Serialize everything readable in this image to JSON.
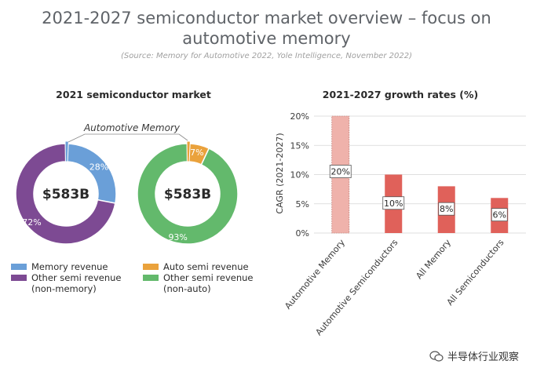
{
  "header": {
    "title_line1": "2021-2027 semiconductor market overview – focus on",
    "title_line2": "automotive memory",
    "source": "(Source: Memory for Automotive 2022, Yole Intelligence, November 2022)"
  },
  "left_panel": {
    "title": "2021 semiconductor market",
    "callout": "Automotive Memory",
    "donut1_center": "$583B",
    "donut2_center": "$583B",
    "legend": [
      {
        "label": "Memory revenue",
        "sub": "",
        "color": "#6a9fd8"
      },
      {
        "label": "Other semi revenue",
        "sub": "(non-memory)",
        "color": "#7d4a93"
      },
      {
        "label": "Auto semi revenue",
        "sub": "",
        "color": "#eaa23c"
      },
      {
        "label": "Other semi revenue",
        "sub": "(non-auto)",
        "color": "#63b96c"
      }
    ]
  },
  "right_panel": {
    "title": "2021-2027 growth rates (%)"
  },
  "chart_data": [
    {
      "type": "pie",
      "subtype": "donut",
      "center_label": "$583B",
      "slices": [
        {
          "label": "Memory revenue",
          "value": 28,
          "display": "28%",
          "color": "#6a9fd8"
        },
        {
          "label": "Other semi revenue (non-memory)",
          "value": 72,
          "display": "72%",
          "color": "#7d4a93"
        }
      ],
      "highlight": {
        "label": "Automotive Memory",
        "value": 1,
        "color": "#6a9fd8"
      }
    },
    {
      "type": "pie",
      "subtype": "donut",
      "center_label": "$583B",
      "slices": [
        {
          "label": "Auto semi revenue",
          "value": 7,
          "display": "7%",
          "color": "#eaa23c"
        },
        {
          "label": "Other semi revenue (non-auto)",
          "value": 93,
          "display": "93%",
          "color": "#63b96c"
        }
      ],
      "highlight": {
        "label": "Automotive Memory",
        "value": 1,
        "color": "#eaa23c"
      }
    },
    {
      "type": "bar",
      "title": "2021-2027 growth rates (%)",
      "ylabel": "CAGR (2021-2027)",
      "xlabel": "",
      "categories": [
        "Automotive Memory",
        "Automotive Semiconductors",
        "All Memory",
        "All Semiconductors"
      ],
      "values": [
        20,
        10,
        8,
        6
      ],
      "value_labels": [
        "20%",
        "10%",
        "8%",
        "6%"
      ],
      "yticks": [
        "0%",
        "5%",
        "10%",
        "15%",
        "20%"
      ],
      "ylim": [
        0,
        20
      ],
      "colors": [
        "#efb2ab",
        "#e0615a",
        "#e0615a",
        "#e0615a"
      ],
      "grid": "horizontal"
    }
  ],
  "watermark": {
    "text": "半导体行业观察"
  }
}
